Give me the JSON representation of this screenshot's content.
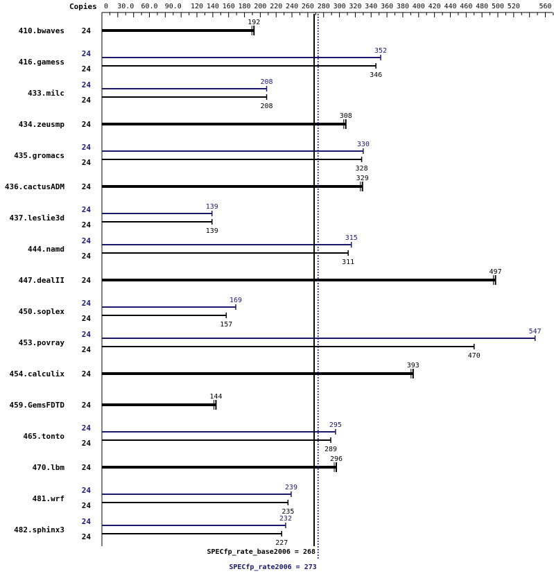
{
  "chart_data": {
    "type": "bar",
    "orientation": "horizontal",
    "copies_header": "Copies",
    "ylim": [
      0,
      560
    ],
    "x_ticks": [
      "0",
      "30.0",
      "60.0",
      "90.0",
      "120",
      "140",
      "160",
      "180",
      "200",
      "220",
      "240",
      "260",
      "280",
      "300",
      "320",
      "340",
      "360",
      "380",
      "400",
      "420",
      "440",
      "460",
      "480",
      "500",
      "520",
      "560"
    ],
    "colors": {
      "base": "#000000",
      "peak": "#191970"
    },
    "benchmarks": [
      {
        "name": "410.bwaves",
        "base": 192,
        "base_copies": "24"
      },
      {
        "name": "416.gamess",
        "peak": 352,
        "peak_copies": "24",
        "base": 346,
        "base_copies": "24"
      },
      {
        "name": "433.milc",
        "peak": 208,
        "peak_copies": "24",
        "base": 208,
        "base_copies": "24"
      },
      {
        "name": "434.zeusmp",
        "base": 308,
        "base_copies": "24"
      },
      {
        "name": "435.gromacs",
        "peak": 330,
        "peak_copies": "24",
        "base": 328,
        "base_copies": "24"
      },
      {
        "name": "436.cactusADM",
        "base": 329,
        "base_copies": "24"
      },
      {
        "name": "437.leslie3d",
        "peak": 139,
        "peak_copies": "24",
        "base": 139,
        "base_copies": "24"
      },
      {
        "name": "444.namd",
        "peak": 315,
        "peak_copies": "24",
        "base": 311,
        "base_copies": "24"
      },
      {
        "name": "447.dealII",
        "base": 497,
        "base_copies": "24"
      },
      {
        "name": "450.soplex",
        "peak": 169,
        "peak_copies": "24",
        "base": 157,
        "base_copies": "24"
      },
      {
        "name": "453.povray",
        "peak": 547,
        "peak_copies": "24",
        "base": 470,
        "base_copies": "24"
      },
      {
        "name": "454.calculix",
        "base": 393,
        "base_copies": "24"
      },
      {
        "name": "459.GemsFDTD",
        "base": 144,
        "base_copies": "24"
      },
      {
        "name": "465.tonto",
        "peak": 295,
        "peak_copies": "24",
        "base": 289,
        "base_copies": "24"
      },
      {
        "name": "470.lbm",
        "base": 296,
        "base_copies": "24"
      },
      {
        "name": "481.wrf",
        "peak": 239,
        "peak_copies": "24",
        "base": 235,
        "base_copies": "24"
      },
      {
        "name": "482.sphinx3",
        "peak": 232,
        "peak_copies": "24",
        "base": 227,
        "base_copies": "24"
      }
    ],
    "reference_lines": [
      {
        "label": "SPECfp_rate_base2006 = 268",
        "value": 268,
        "style": "solid",
        "color": "#000000"
      },
      {
        "label": "SPECfp_rate2006 = 273",
        "value": 273,
        "style": "dotted",
        "color": "#191970"
      }
    ],
    "grid": false
  }
}
